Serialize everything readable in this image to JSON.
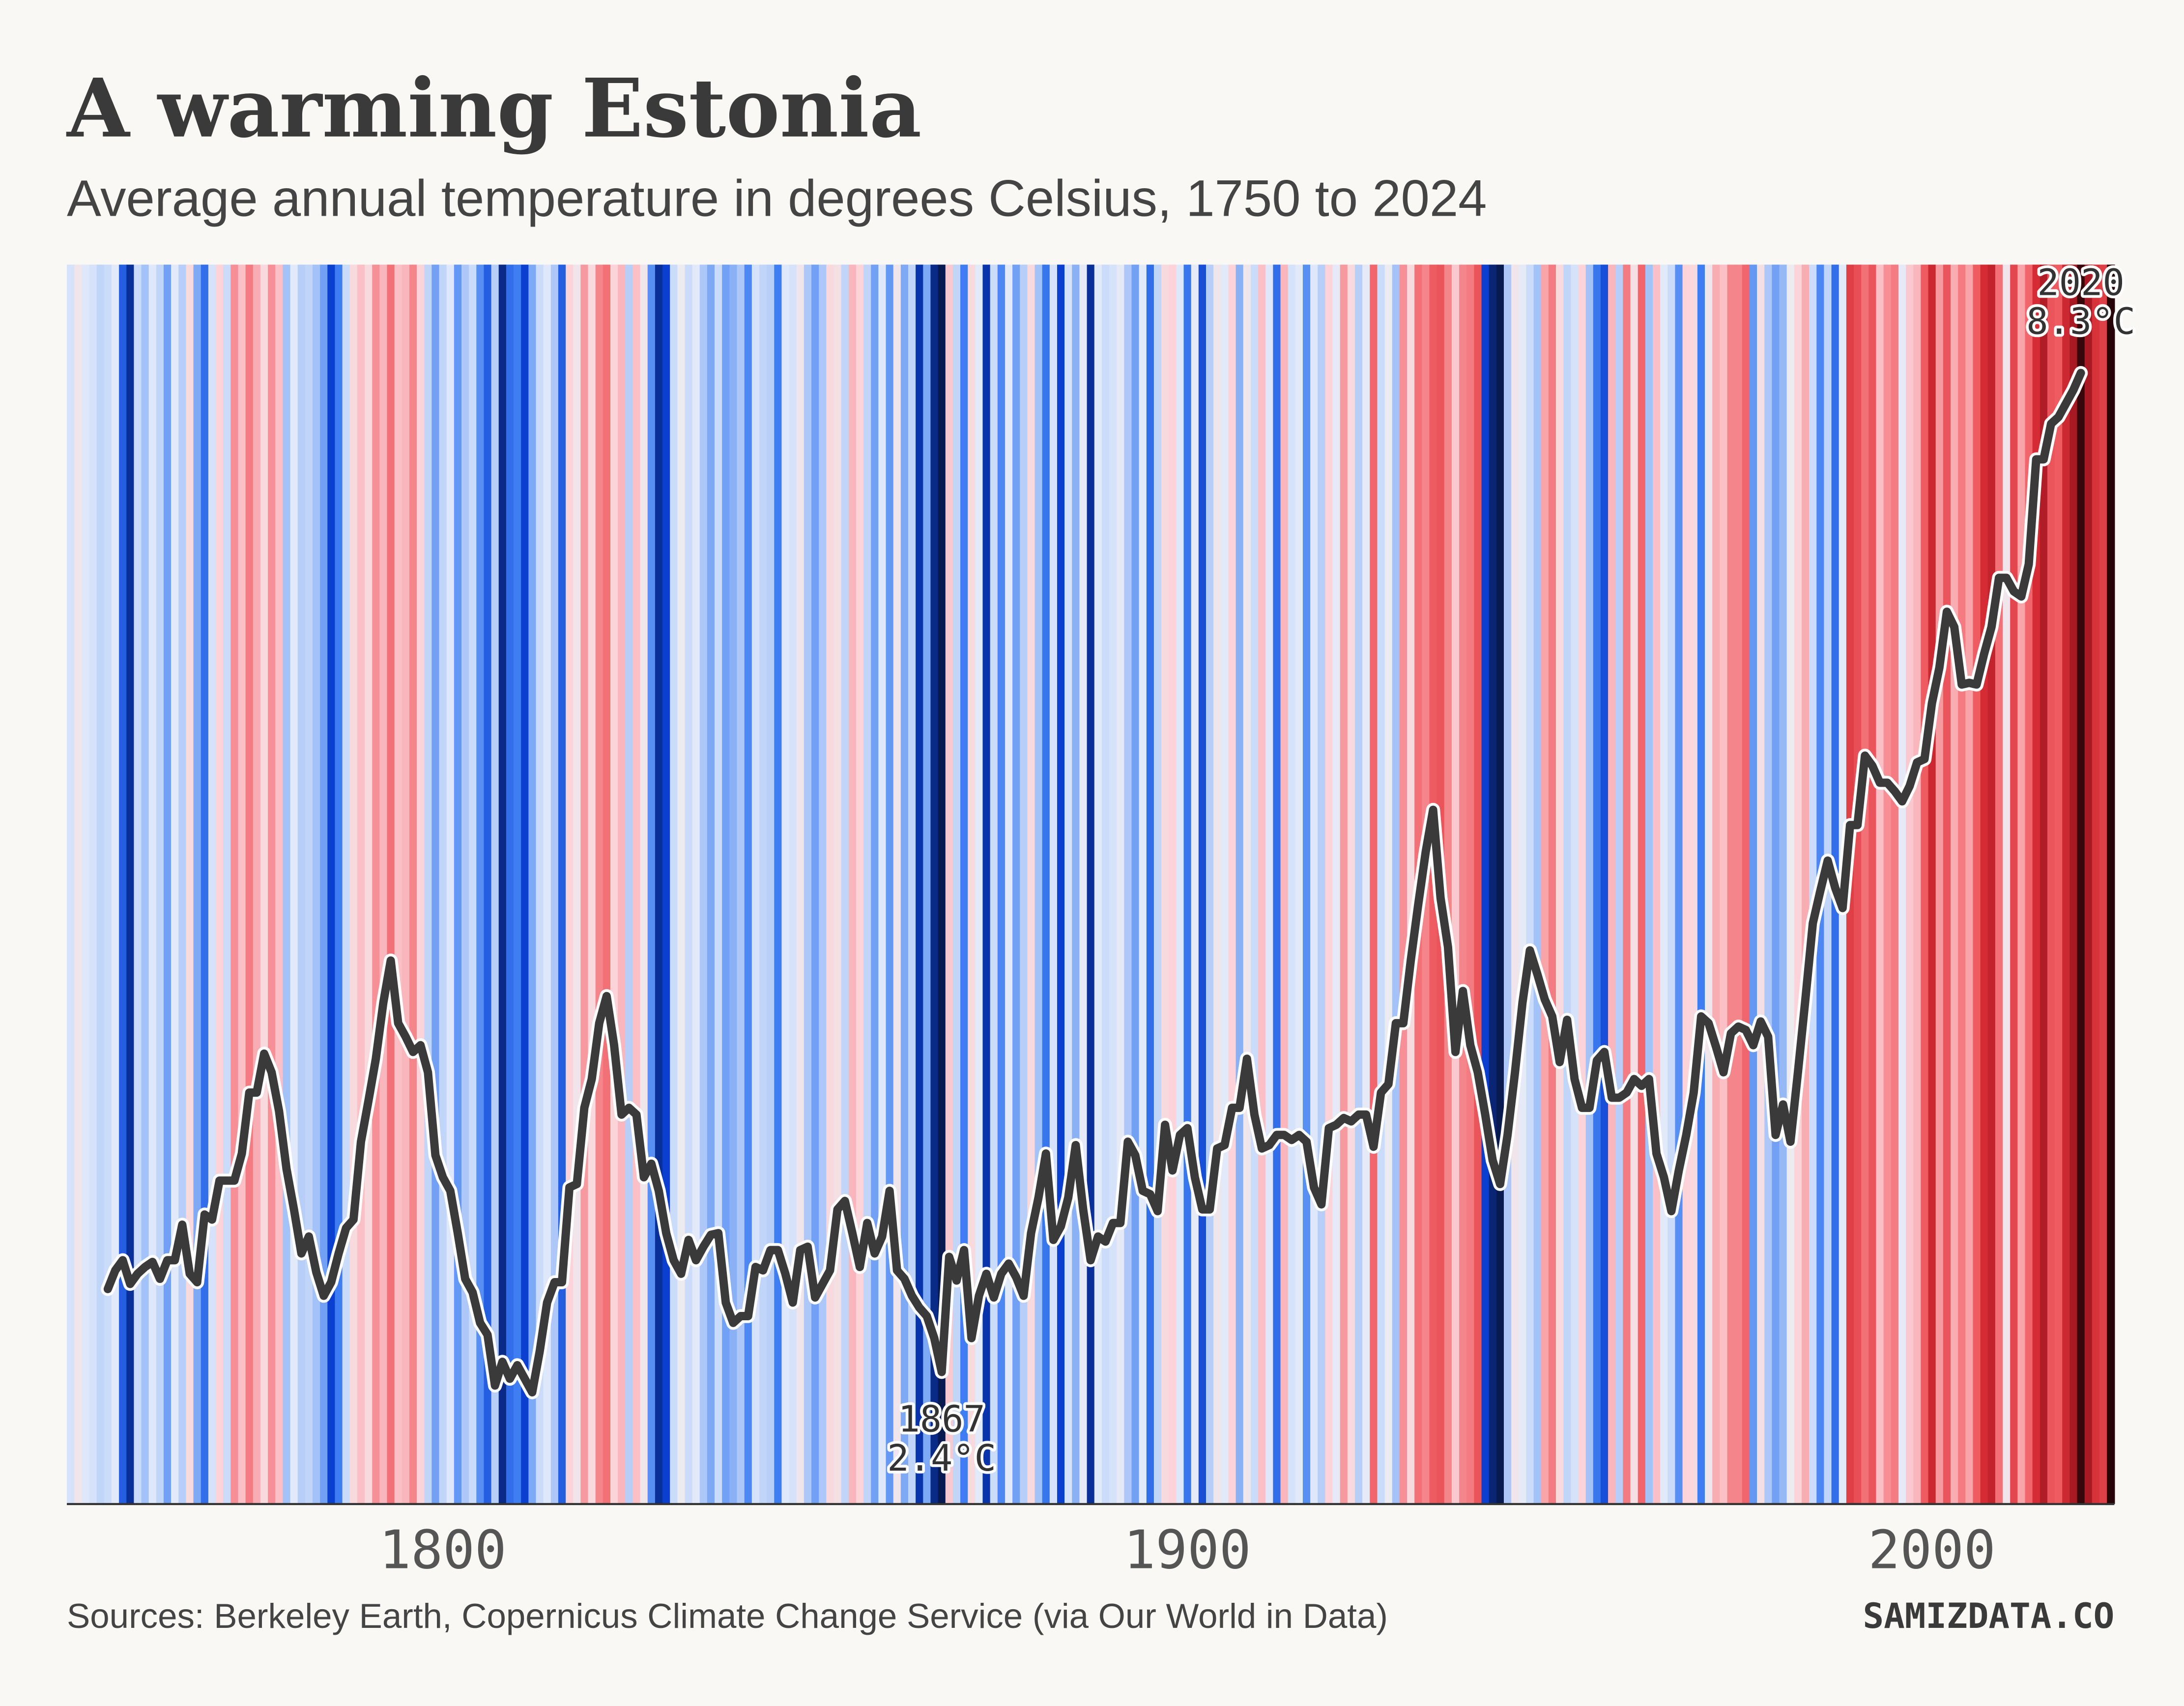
{
  "chart_data": {
    "type": "stripes_line",
    "title": "A warming Estonia",
    "subtitle": "Average annual temperature in degrees Celsius, 1750 to 2024",
    "source": "Sources: Berkeley Earth, Copernicus Climate Change Service (via Our World in Data)",
    "brand": "SAMIZDATA.CO",
    "x": [
      1750,
      1751,
      1752,
      1753,
      1754,
      1755,
      1756,
      1757,
      1758,
      1759,
      1760,
      1761,
      1762,
      1763,
      1764,
      1765,
      1766,
      1767,
      1768,
      1769,
      1770,
      1771,
      1772,
      1773,
      1774,
      1775,
      1776,
      1777,
      1778,
      1779,
      1780,
      1781,
      1782,
      1783,
      1784,
      1785,
      1786,
      1787,
      1788,
      1789,
      1790,
      1791,
      1792,
      1793,
      1794,
      1795,
      1796,
      1797,
      1798,
      1799,
      1800,
      1801,
      1802,
      1803,
      1804,
      1805,
      1806,
      1807,
      1808,
      1809,
      1810,
      1811,
      1812,
      1813,
      1814,
      1815,
      1816,
      1817,
      1818,
      1819,
      1820,
      1821,
      1822,
      1823,
      1824,
      1825,
      1826,
      1827,
      1828,
      1829,
      1830,
      1831,
      1832,
      1833,
      1834,
      1835,
      1836,
      1837,
      1838,
      1839,
      1840,
      1841,
      1842,
      1843,
      1844,
      1845,
      1846,
      1847,
      1848,
      1849,
      1850,
      1851,
      1852,
      1853,
      1854,
      1855,
      1856,
      1857,
      1858,
      1859,
      1860,
      1861,
      1862,
      1863,
      1864,
      1865,
      1866,
      1867,
      1868,
      1869,
      1870,
      1871,
      1872,
      1873,
      1874,
      1875,
      1876,
      1877,
      1878,
      1879,
      1880,
      1881,
      1882,
      1883,
      1884,
      1885,
      1886,
      1887,
      1888,
      1889,
      1890,
      1891,
      1892,
      1893,
      1894,
      1895,
      1896,
      1897,
      1898,
      1899,
      1900,
      1901,
      1902,
      1903,
      1904,
      1905,
      1906,
      1907,
      1908,
      1909,
      1910,
      1911,
      1912,
      1913,
      1914,
      1915,
      1916,
      1917,
      1918,
      1919,
      1920,
      1921,
      1922,
      1923,
      1924,
      1925,
      1926,
      1927,
      1928,
      1929,
      1930,
      1931,
      1932,
      1933,
      1934,
      1935,
      1936,
      1937,
      1938,
      1939,
      1940,
      1941,
      1942,
      1943,
      1944,
      1945,
      1946,
      1947,
      1948,
      1949,
      1950,
      1951,
      1952,
      1953,
      1954,
      1955,
      1956,
      1957,
      1958,
      1959,
      1960,
      1961,
      1962,
      1963,
      1964,
      1965,
      1966,
      1967,
      1968,
      1969,
      1970,
      1971,
      1972,
      1973,
      1974,
      1975,
      1976,
      1977,
      1978,
      1979,
      1980,
      1981,
      1982,
      1983,
      1984,
      1985,
      1986,
      1987,
      1988,
      1989,
      1990,
      1991,
      1992,
      1993,
      1994,
      1995,
      1996,
      1997,
      1998,
      1999,
      2000,
      2001,
      2002,
      2003,
      2004,
      2005,
      2006,
      2007,
      2008,
      2009,
      2010,
      2011,
      2012,
      2013,
      2014,
      2015,
      2016,
      2017,
      2018,
      2019,
      2020,
      2021,
      2022,
      2023,
      2024
    ],
    "xlim": [
      1749.5,
      2024.5
    ],
    "xticks": [
      1800,
      1900,
      2000
    ],
    "ylim": [
      1.62,
      8.94
    ],
    "stripes": {
      "values": [
        4.7,
        5.3,
        4.8,
        4.7,
        4.5,
        4.6,
        4.9,
        3.0,
        2.3,
        4.6,
        4.2,
        4.8,
        4.5,
        3.8,
        4.9,
        4.4,
        5.5,
        3.9,
        3.2,
        4.7,
        5.6,
        4.6,
        6.3,
        5.8,
        6.5,
        6.0,
        5.5,
        6.3,
        5.8,
        4.2,
        4.9,
        4.4,
        4.5,
        4.2,
        3.8,
        2.6,
        3.4,
        4.6,
        5.5,
        5.8,
        5.5,
        6.3,
        5.9,
        6.6,
        5.8,
        5.9,
        6.4,
        5.6,
        4.5,
        3.8,
        4.5,
        4.8,
        3.7,
        4.3,
        4.6,
        3.6,
        3.0,
        4.4,
        2.2,
        3.2,
        3.4,
        2.6,
        3.9,
        4.6,
        4.8,
        4.3,
        3.0,
        5.6,
        5.3,
        6.2,
        5.5,
        6.4,
        6.6,
        5.6,
        5.9,
        4.4,
        5.8,
        5.3,
        3.6,
        2.3,
        2.6,
        4.6,
        5.2,
        4.6,
        4.9,
        4.3,
        3.9,
        4.6,
        3.8,
        4.0,
        4.3,
        3.5,
        4.7,
        4.5,
        4.4,
        3.4,
        4.8,
        4.7,
        5.3,
        4.3,
        3.8,
        4.3,
        5.5,
        5.4,
        4.5,
        5.9,
        5.6,
        4.5,
        3.8,
        4.8,
        3.7,
        5.3,
        3.9,
        4.5,
        2.4,
        3.9,
        2.2,
        1.9,
        5.7,
        4.5,
        3.4,
        5.5,
        4.9,
        2.4,
        4.6,
        3.5,
        4.9,
        3.8,
        4.4,
        5.5,
        4.2,
        3.3,
        4.7,
        2.6,
        4.7,
        4.0,
        5.0,
        2.3,
        4.9,
        4.6,
        4.7,
        5.0,
        4.3,
        3.8,
        4.9,
        3.2,
        4.5,
        5.5,
        5.6,
        4.8,
        3.3,
        5.0,
        2.8,
        4.4,
        5.3,
        4.9,
        5.6,
        4.0,
        5.3,
        4.6,
        5.8,
        4.8,
        3.2,
        5.9,
        4.7,
        4.9,
        3.6,
        4.8,
        4.4,
        5.6,
        5.0,
        6.2,
        5.5,
        4.4,
        5.0,
        6.7,
        4.6,
        5.2,
        4.2,
        6.3,
        5.5,
        6.6,
        6.4,
        6.8,
        6.9,
        6.4,
        5.7,
        6.4,
        6.5,
        6.9,
        2.6,
        2.1,
        1.9,
        4.3,
        5.3,
        5.0,
        4.6,
        4.2,
        6.1,
        6.5,
        5.5,
        4.5,
        4.7,
        5.6,
        4.2,
        3.3,
        2.8,
        5.9,
        4.4,
        6.5,
        5.4,
        6.7,
        4.2,
        5.8,
        4.9,
        4.6,
        3.6,
        5.6,
        5.5,
        3.4,
        5.3,
        6.0,
        5.8,
        6.4,
        6.4,
        6.7,
        3.7,
        5.4,
        4.3,
        3.8,
        4.1,
        5.2,
        5.6,
        6.0,
        4.6,
        3.5,
        4.5,
        3.2,
        4.9,
        7.2,
        7.0,
        6.6,
        6.9,
        5.8,
        6.3,
        6.5,
        5.0,
        5.7,
        5.9,
        6.8,
        7.6,
        6.2,
        6.9,
        6.0,
        6.5,
        6.1,
        6.8,
        7.5,
        7.7,
        6.6,
        5.3,
        7.1,
        6.1,
        6.7,
        7.5,
        7.9,
        6.9,
        6.8,
        7.6,
        8.0,
        8.7,
        8.0,
        7.4,
        7.2,
        8.8
      ],
      "color_scale": [
        [
          1.9,
          "#081a4f"
        ],
        [
          2.6,
          "#0a3fd0"
        ],
        [
          3.4,
          "#3f7ef2"
        ],
        [
          4.2,
          "#a3c2f7"
        ],
        [
          4.8,
          "#dfe8fb"
        ],
        [
          5.2,
          "#ecebf0"
        ],
        [
          5.6,
          "#fbd3d8"
        ],
        [
          6.2,
          "#f79aa0"
        ],
        [
          6.8,
          "#ee5c62"
        ],
        [
          7.5,
          "#d42b34"
        ],
        [
          8.1,
          "#9e1620"
        ],
        [
          8.8,
          "#260407"
        ]
      ]
    },
    "line": {
      "color": "#3a3a3a",
      "values": [
        null,
        null,
        null,
        null,
        null,
        2.89,
        3.0,
        3.06,
        2.92,
        2.98,
        3.02,
        3.05,
        2.95,
        3.06,
        3.06,
        3.27,
        2.98,
        2.93,
        3.33,
        3.3,
        3.53,
        3.53,
        3.53,
        3.69,
        4.05,
        4.05,
        4.28,
        4.17,
        3.94,
        3.6,
        3.36,
        3.1,
        3.2,
        2.99,
        2.85,
        2.93,
        3.1,
        3.25,
        3.3,
        3.76,
        4.0,
        4.25,
        4.58,
        4.83,
        4.46,
        4.38,
        4.29,
        4.33,
        4.17,
        3.68,
        3.55,
        3.47,
        3.22,
        2.95,
        2.87,
        2.69,
        2.62,
        2.32,
        2.46,
        2.36,
        2.44,
        2.36,
        2.28,
        2.52,
        2.81,
        2.93,
        2.93,
        3.49,
        3.51,
        3.96,
        4.13,
        4.46,
        4.62,
        4.33,
        3.92,
        3.96,
        3.92,
        3.55,
        3.63,
        3.47,
        3.22,
        3.06,
        2.98,
        3.18,
        3.06,
        3.14,
        3.21,
        3.22,
        2.81,
        2.69,
        2.73,
        2.73,
        3.02,
        3.0,
        3.12,
        3.12,
        2.98,
        2.81,
        3.12,
        3.14,
        2.84,
        2.92,
        3.0,
        3.36,
        3.41,
        3.22,
        3.02,
        3.28,
        3.1,
        3.2,
        3.47,
        3.0,
        2.95,
        2.85,
        2.78,
        2.73,
        2.6,
        2.4,
        3.08,
        2.94,
        3.12,
        2.6,
        2.85,
        2.98,
        2.84,
        2.98,
        3.04,
        2.96,
        2.85,
        3.22,
        3.43,
        3.69,
        3.18,
        3.26,
        3.43,
        3.74,
        3.36,
        3.06,
        3.2,
        3.17,
        3.28,
        3.28,
        3.76,
        3.68,
        3.47,
        3.45,
        3.35,
        3.86,
        3.59,
        3.8,
        3.84,
        3.55,
        3.36,
        3.36,
        3.72,
        3.74,
        3.96,
        3.96,
        4.25,
        3.92,
        3.72,
        3.74,
        3.8,
        3.8,
        3.77,
        3.8,
        3.76,
        3.49,
        3.39,
        3.84,
        3.86,
        3.9,
        3.88,
        3.92,
        3.92,
        3.73,
        4.05,
        4.1,
        4.46,
        4.46,
        4.83,
        5.16,
        5.47,
        5.72,
        5.2,
        4.91,
        4.29,
        4.65,
        4.33,
        4.17,
        3.92,
        3.65,
        3.51,
        3.8,
        4.17,
        4.58,
        4.89,
        4.75,
        4.6,
        4.5,
        4.23,
        4.48,
        4.13,
        3.96,
        3.96,
        4.24,
        4.29,
        4.02,
        4.02,
        4.05,
        4.13,
        4.09,
        4.13,
        3.69,
        3.55,
        3.35,
        3.59,
        3.8,
        4.05,
        4.5,
        4.46,
        4.32,
        4.17,
        4.4,
        4.44,
        4.42,
        4.33,
        4.47,
        4.38,
        3.8,
        3.98,
        3.76,
        4.17,
        4.6,
        5.05,
        5.24,
        5.42,
        5.26,
        5.14,
        5.63,
        5.63,
        6.04,
        5.98,
        5.88,
        5.88,
        5.83,
        5.77,
        5.86,
        6.0,
        6.02,
        6.35,
        6.56,
        6.89,
        6.8,
        6.46,
        6.47,
        6.46,
        6.64,
        6.8,
        7.09,
        7.09,
        7.01,
        6.98,
        7.17,
        7.79,
        7.79,
        8.0,
        8.04,
        8.12,
        8.2,
        8.3,
        null,
        null,
        null,
        null
      ]
    },
    "annotations": [
      {
        "x": 2020,
        "y": 8.3,
        "y_label": "8.3°C"
      },
      {
        "x": 1867,
        "y": 2.4,
        "y_label": "2.4°C"
      }
    ]
  }
}
